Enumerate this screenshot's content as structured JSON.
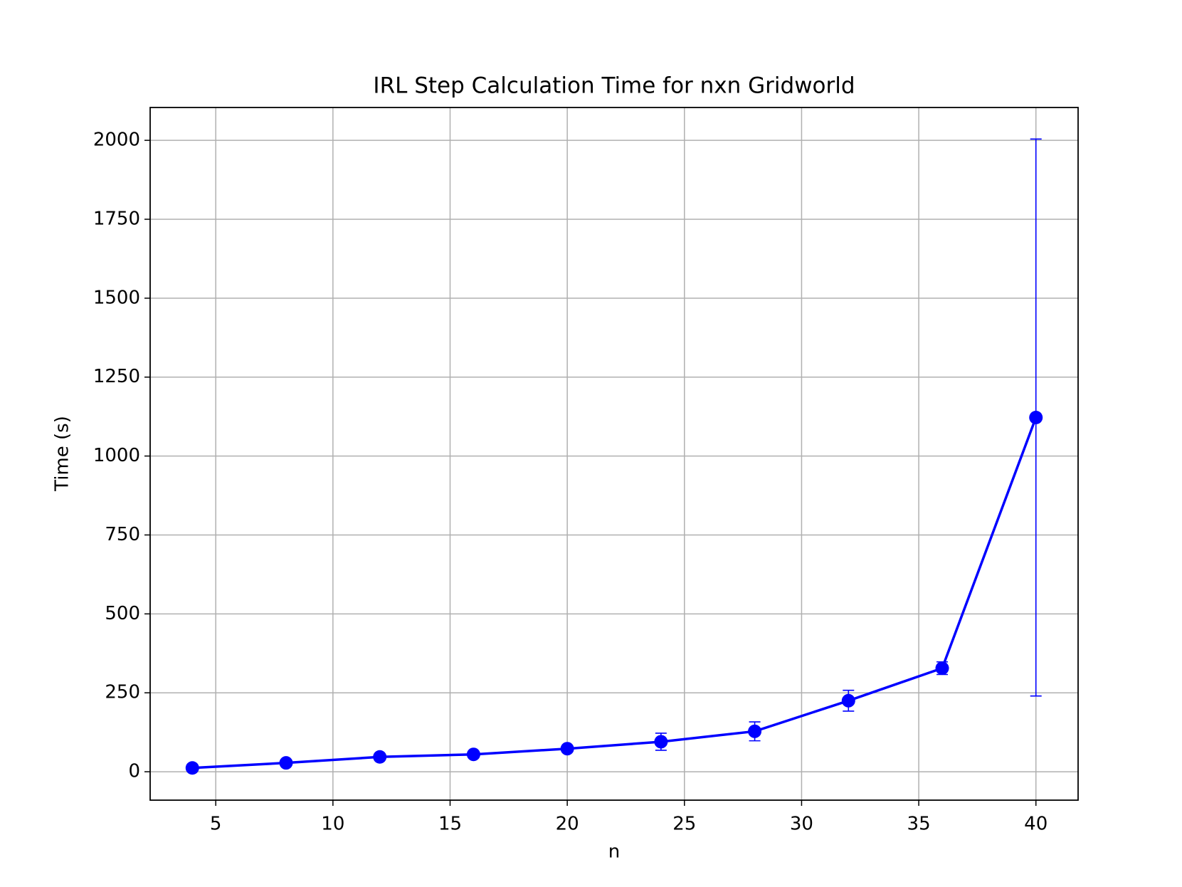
{
  "chart_data": {
    "type": "line",
    "title": "IRL Step Calculation Time for nxn Gridworld",
    "xlabel": "n",
    "ylabel": "Time (s)",
    "x": [
      4,
      8,
      12,
      16,
      20,
      24,
      28,
      32,
      36,
      40
    ],
    "series": [
      {
        "color": "#0000ff",
        "values": [
          12,
          28,
          47,
          55,
          73,
          95,
          128,
          225,
          328,
          1122
        ],
        "errors": [
          4,
          4,
          4,
          4,
          4,
          27,
          30,
          33,
          20,
          882
        ]
      }
    ],
    "xlim": [
      2.2,
      41.8
    ],
    "ylim": [
      -90,
      2104
    ],
    "xticks": [
      5,
      10,
      15,
      20,
      25,
      30,
      35,
      40
    ],
    "yticks": [
      0,
      250,
      500,
      750,
      1000,
      1250,
      1500,
      1750,
      2000
    ],
    "grid": true
  }
}
